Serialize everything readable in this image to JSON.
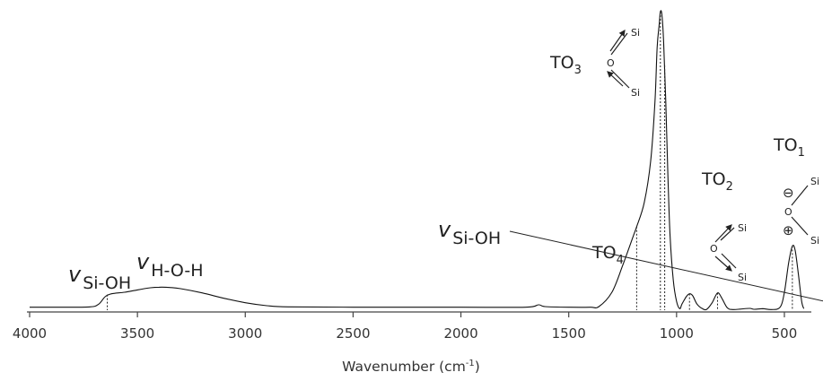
{
  "chart_data": {
    "type": "line",
    "xlabel": "Wavenumber (cm",
    "xlabel_sup": "-1",
    "xlabel_end": ")",
    "x_reversed": true,
    "xlim": [
      4000,
      400
    ],
    "x_ticks": [
      4000,
      3500,
      3000,
      2500,
      2000,
      1500,
      1000,
      500
    ],
    "x_tick_labels": [
      "4000",
      "3500",
      "3000",
      "2500",
      "2000",
      "1500",
      "1000",
      "500"
    ],
    "y_ticks_shown": false,
    "grid": false,
    "series": [
      {
        "points": [
          [
            4000,
            0.01
          ],
          [
            3850,
            0.01
          ],
          [
            3720,
            0.011
          ],
          [
            3680,
            0.02
          ],
          [
            3650,
            0.045
          ],
          [
            3620,
            0.055
          ],
          [
            3560,
            0.06
          ],
          [
            3500,
            0.068
          ],
          [
            3440,
            0.075
          ],
          [
            3400,
            0.077
          ],
          [
            3350,
            0.076
          ],
          [
            3300,
            0.072
          ],
          [
            3200,
            0.058
          ],
          [
            3100,
            0.04
          ],
          [
            3000,
            0.025
          ],
          [
            2900,
            0.015
          ],
          [
            2800,
            0.011
          ],
          [
            2500,
            0.01
          ],
          [
            2000,
            0.01
          ],
          [
            1700,
            0.01
          ],
          [
            1640,
            0.018
          ],
          [
            1610,
            0.012
          ],
          [
            1500,
            0.01
          ],
          [
            1400,
            0.01
          ],
          [
            1360,
            0.012
          ],
          [
            1300,
            0.06
          ],
          [
            1250,
            0.15
          ],
          [
            1200,
            0.25
          ],
          [
            1185,
            0.28
          ],
          [
            1150,
            0.36
          ],
          [
            1120,
            0.5
          ],
          [
            1100,
            0.7
          ],
          [
            1090,
            0.88
          ],
          [
            1080,
            0.96
          ],
          [
            1075,
            1.0
          ],
          [
            1068,
            0.99
          ],
          [
            1060,
            0.9
          ],
          [
            1050,
            0.7
          ],
          [
            1040,
            0.45
          ],
          [
            1030,
            0.25
          ],
          [
            1015,
            0.1
          ],
          [
            1000,
            0.03
          ],
          [
            985,
            0.005
          ],
          [
            975,
            0.02
          ],
          [
            955,
            0.045
          ],
          [
            940,
            0.055
          ],
          [
            925,
            0.048
          ],
          [
            905,
            0.02
          ],
          [
            880,
            0.005
          ],
          [
            860,
            0.003
          ],
          [
            835,
            0.025
          ],
          [
            810,
            0.058
          ],
          [
            790,
            0.04
          ],
          [
            765,
            0.008
          ],
          [
            740,
            0.002
          ],
          [
            700,
            0.004
          ],
          [
            660,
            0.006
          ],
          [
            640,
            0.003
          ],
          [
            600,
            0.005
          ],
          [
            560,
            0.002
          ],
          [
            520,
            0.01
          ],
          [
            500,
            0.06
          ],
          [
            480,
            0.16
          ],
          [
            463,
            0.215
          ],
          [
            450,
            0.2
          ],
          [
            435,
            0.12
          ],
          [
            420,
            0.03
          ],
          [
            410,
            0.005
          ]
        ]
      }
    ],
    "peak_markers": [
      {
        "x": 3640,
        "y": 0.052
      },
      {
        "x": 1185,
        "y": 0.28
      },
      {
        "x": 1075,
        "y": 1.0
      },
      {
        "x": 1055,
        "y": 0.82
      },
      {
        "x": 940,
        "y": 0.055
      },
      {
        "x": 810,
        "y": 0.058
      },
      {
        "x": 463,
        "y": 0.215
      }
    ],
    "annotations": {
      "v_sioh_left": {
        "symbol": "v",
        "sub": "Si-OH"
      },
      "v_hoh": {
        "symbol": "v",
        "sub": "H-O-H"
      },
      "v_sioh_right": {
        "symbol": "v",
        "sub": "Si-OH"
      },
      "to4": {
        "main": "TO",
        "sub": "4"
      },
      "to3": {
        "main": "TO",
        "sub": "3"
      },
      "to2": {
        "main": "TO",
        "sub": "2"
      },
      "to1": {
        "main": "TO",
        "sub": "1"
      }
    },
    "molecule_labels": {
      "si": "Si",
      "o": "O",
      "minus": "⊖",
      "plus": "⊕"
    }
  }
}
